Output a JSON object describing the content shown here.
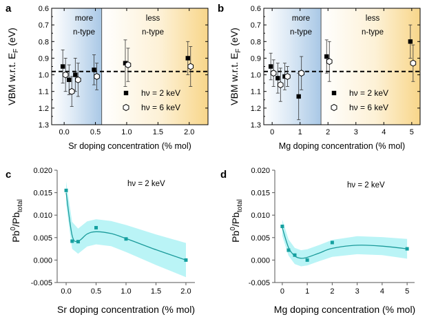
{
  "chart_data": [
    {
      "id": "a",
      "panel_label": "a",
      "type": "scatter",
      "ylabel": "VBM w.r.t. E",
      "ylabel_sub": "F",
      "ylabel_unit": "(eV)",
      "xlabel": "Sr doping concentration (% mol)",
      "xlim": [
        -0.2,
        2.3
      ],
      "ylim": [
        0.6,
        1.3
      ],
      "y_inverted": true,
      "xticks": [
        "0.0",
        "0.5",
        "1.0",
        "1.5",
        "2.0"
      ],
      "yticks": [
        "0.6",
        "0.7",
        "0.8",
        "0.9",
        "1.0",
        "1.1",
        "1.2",
        "1.3"
      ],
      "reference_line": 0.98,
      "region_boundary": 0.6,
      "regions": [
        {
          "line1": "more",
          "line2": "n-type",
          "color": "#bdd7ee"
        },
        {
          "line1": "less",
          "line2": "n-type",
          "color": "#fbe3a8"
        }
      ],
      "series": [
        {
          "name": "hν = 2 keV",
          "marker": "square",
          "points": [
            {
              "x": 0.0,
              "y": 0.95,
              "err": 0.1
            },
            {
              "x": 0.1,
              "y": 1.03,
              "err": 0.09
            },
            {
              "x": 0.2,
              "y": 1.0,
              "err": 0.1
            },
            {
              "x": 0.5,
              "y": 0.97,
              "err": 0.09
            },
            {
              "x": 1.0,
              "y": 0.93,
              "err": 0.14
            },
            {
              "x": 2.0,
              "y": 0.9,
              "err": 0.1
            }
          ]
        },
        {
          "name": "hν = 6 keV",
          "marker": "hexagon",
          "points": [
            {
              "x": 0.0,
              "y": 1.0,
              "err": 0.1
            },
            {
              "x": 0.1,
              "y": 1.1,
              "err": 0.09
            },
            {
              "x": 0.2,
              "y": 1.03,
              "err": 0.1
            },
            {
              "x": 0.5,
              "y": 1.01,
              "err": 0.08
            },
            {
              "x": 1.0,
              "y": 0.94,
              "err": 0.1
            },
            {
              "x": 2.0,
              "y": 0.95,
              "err": 0.12
            }
          ]
        }
      ],
      "legend": [
        "hν = 2 keV",
        "hν = 6 keV"
      ]
    },
    {
      "id": "b",
      "panel_label": "b",
      "type": "scatter",
      "ylabel": "VBM w.r.t. E",
      "ylabel_sub": "F",
      "ylabel_unit": "(eV)",
      "xlabel": "Mg doping concentration (% mol)",
      "xlim": [
        -0.3,
        5.3
      ],
      "ylim": [
        0.6,
        1.3
      ],
      "y_inverted": true,
      "xticks": [
        "0",
        "1",
        "2",
        "3",
        "4",
        "5"
      ],
      "yticks": [
        "0.6",
        "0.7",
        "0.8",
        "0.9",
        "1.0",
        "1.1",
        "1.2",
        "1.3"
      ],
      "reference_line": 0.98,
      "region_boundary": 1.75,
      "regions": [
        {
          "line1": "more",
          "line2": "n-type",
          "color": "#bdd7ee"
        },
        {
          "line1": "less",
          "line2": "n-type",
          "color": "#fbe3a8"
        }
      ],
      "series": [
        {
          "name": "hν = 2 keV",
          "marker": "square",
          "points": [
            {
              "x": 0.0,
              "y": 0.95,
              "err": 0.08
            },
            {
              "x": 0.25,
              "y": 1.02,
              "err": 0.09
            },
            {
              "x": 0.5,
              "y": 1.01,
              "err": 0.08
            },
            {
              "x": 1.0,
              "y": 1.13,
              "err": 0.14
            },
            {
              "x": 2.0,
              "y": 0.89,
              "err": 0.1
            },
            {
              "x": 5.0,
              "y": 0.8,
              "err": 0.1
            }
          ]
        },
        {
          "name": "hν = 6 keV",
          "marker": "hexagon",
          "points": [
            {
              "x": 0.0,
              "y": 0.99,
              "err": 0.08
            },
            {
              "x": 0.25,
              "y": 1.06,
              "err": 0.1
            },
            {
              "x": 0.5,
              "y": 1.01,
              "err": 0.06
            },
            {
              "x": 1.0,
              "y": 0.99,
              "err": 0.1
            },
            {
              "x": 2.0,
              "y": 0.92,
              "err": 0.12
            },
            {
              "x": 5.0,
              "y": 0.93,
              "err": 0.11
            }
          ]
        }
      ],
      "legend": [
        "hν = 2 keV",
        "hν = 6 keV"
      ]
    },
    {
      "id": "c",
      "panel_label": "c",
      "type": "scatter",
      "ylabel": "Pb",
      "ylabel_sup": "0",
      "ylabel_mid": "/Pb",
      "ylabel_sub": "total",
      "xlabel": "Sr doping concentration (% mol)",
      "annotation": "hν = 2 keV",
      "xlim": [
        -0.15,
        2.15
      ],
      "ylim": [
        -0.005,
        0.02
      ],
      "xticks": [
        "0.0",
        "0.5",
        "1.0",
        "1.5",
        "2.0"
      ],
      "yticks": [
        "-0.005",
        "0.000",
        "0.005",
        "0.010",
        "0.015",
        "0.020"
      ],
      "points": [
        {
          "x": 0.0,
          "y": 0.0155
        },
        {
          "x": 0.1,
          "y": 0.0042
        },
        {
          "x": 0.2,
          "y": 0.0041
        },
        {
          "x": 0.5,
          "y": 0.0072
        },
        {
          "x": 1.0,
          "y": 0.0047
        },
        {
          "x": 2.0,
          "y": 0.0
        }
      ],
      "fit": [
        {
          "x": 0.0,
          "y": 0.015,
          "band": 0.0025
        },
        {
          "x": 0.1,
          "y": 0.0055,
          "band": 0.003
        },
        {
          "x": 0.2,
          "y": 0.0042,
          "band": 0.0028
        },
        {
          "x": 0.35,
          "y": 0.0058,
          "band": 0.0028
        },
        {
          "x": 0.5,
          "y": 0.0063,
          "band": 0.0028
        },
        {
          "x": 0.75,
          "y": 0.0059,
          "band": 0.0028
        },
        {
          "x": 1.0,
          "y": 0.0048,
          "band": 0.003
        },
        {
          "x": 1.5,
          "y": 0.0023,
          "band": 0.0034
        },
        {
          "x": 2.0,
          "y": 0.0,
          "band": 0.0038
        }
      ]
    },
    {
      "id": "d",
      "panel_label": "d",
      "type": "scatter",
      "ylabel": "Pb",
      "ylabel_sup": "0",
      "ylabel_mid": "/Pb",
      "ylabel_sub": "total",
      "xlabel": "Mg doping concentration (% mol)",
      "annotation": "hν = 2 keV",
      "xlim": [
        -0.3,
        5.3
      ],
      "ylim": [
        -0.005,
        0.02
      ],
      "xticks": [
        "0",
        "1",
        "2",
        "3",
        "4",
        "5"
      ],
      "yticks": [
        "-0.005",
        "0.000",
        "0.005",
        "0.010",
        "0.015",
        "0.020"
      ],
      "points": [
        {
          "x": 0.0,
          "y": 0.0075
        },
        {
          "x": 0.25,
          "y": 0.0022
        },
        {
          "x": 0.5,
          "y": 0.0011
        },
        {
          "x": 1.0,
          "y": 0.0
        },
        {
          "x": 2.0,
          "y": 0.0039
        },
        {
          "x": 5.0,
          "y": 0.0025
        }
      ],
      "fit": [
        {
          "x": 0.0,
          "y": 0.0072,
          "band": 0.0018
        },
        {
          "x": 0.25,
          "y": 0.0028,
          "band": 0.0018
        },
        {
          "x": 0.5,
          "y": 0.0009,
          "band": 0.0018
        },
        {
          "x": 0.75,
          "y": 0.0004,
          "band": 0.0018
        },
        {
          "x": 1.0,
          "y": 0.0006,
          "band": 0.0018
        },
        {
          "x": 1.5,
          "y": 0.0016,
          "band": 0.0018
        },
        {
          "x": 2.0,
          "y": 0.0026,
          "band": 0.0019
        },
        {
          "x": 3.0,
          "y": 0.0033,
          "band": 0.002
        },
        {
          "x": 4.0,
          "y": 0.0031,
          "band": 0.002
        },
        {
          "x": 5.0,
          "y": 0.0025,
          "band": 0.0022
        }
      ]
    }
  ]
}
